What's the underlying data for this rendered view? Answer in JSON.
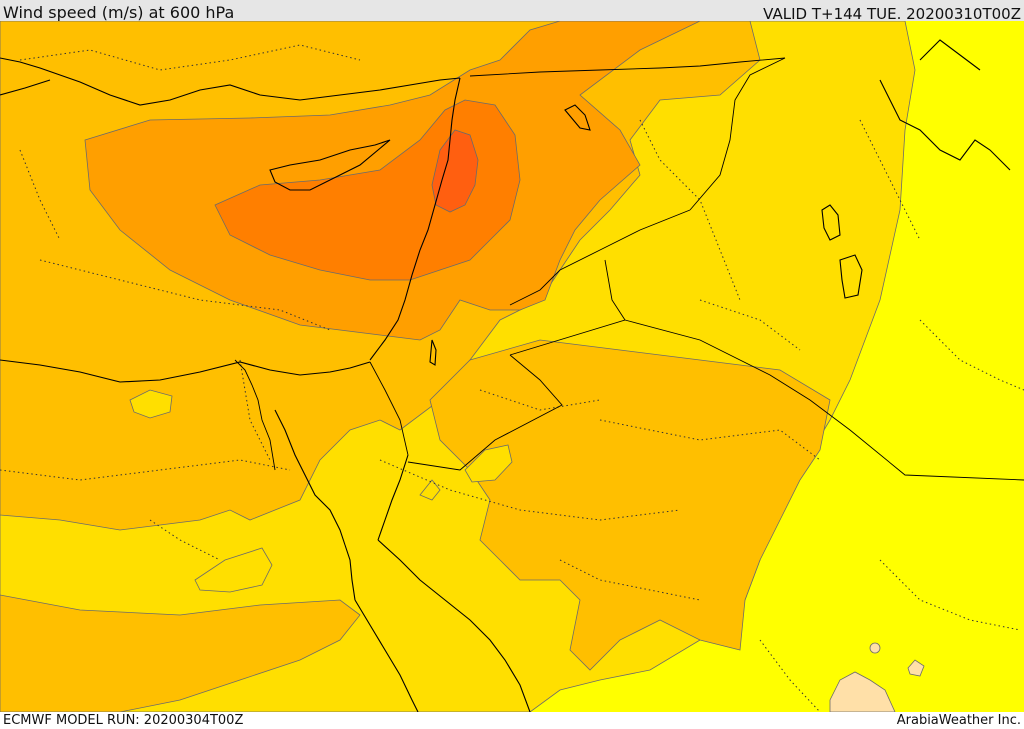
{
  "header": {
    "title": "Wind speed (m/s) at 600 hPa",
    "valid_time": "VALID T+144 TUE. 20200310T00Z"
  },
  "footer": {
    "model_run": "ECMWF MODEL RUN: 20200304T00Z",
    "credit": "ArabiaWeather Inc."
  },
  "map": {
    "field": "wind speed",
    "level": "600 hPa",
    "fill_colors": {
      "lightest": "#ffff00",
      "light": "#ffdf00",
      "medium": "#ffbf00",
      "medium_high": "#ff9f00",
      "high": "#ff7f00",
      "highest": "#ff5f10",
      "low_patch": "#ffe0a8"
    },
    "line_colors": {
      "coastline": "#000000",
      "border": "#000000",
      "contour": "#5a5a5a"
    }
  }
}
